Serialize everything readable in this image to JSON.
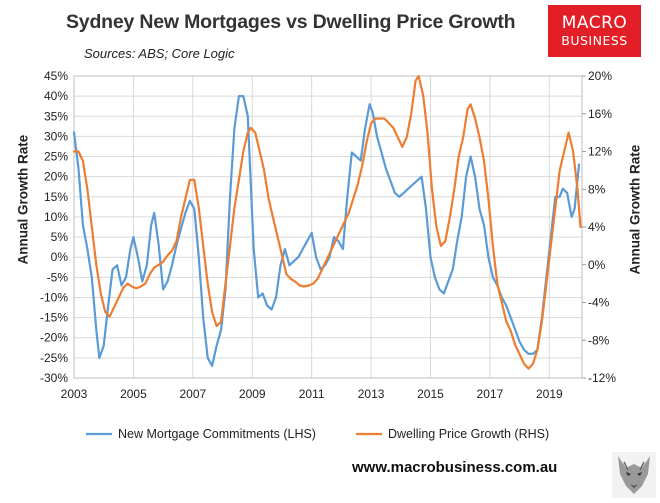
{
  "header": {
    "title": "Sydney New Mortgages vs Dwelling Price Growth",
    "subtitle": "Sources: ABS; Core Logic",
    "logo_line1": "MACRO",
    "logo_line2": "BUSINESS"
  },
  "footer": {
    "website": "www.macrobusiness.com.au",
    "icon": "wolf-logo"
  },
  "colors": {
    "lhs_series": "#5b9bd5",
    "rhs_series": "#ed7d31",
    "brand_red": "#e21f26",
    "grid": "#d9d9d9"
  },
  "chart_data": {
    "type": "line",
    "title": "Sydney New Mortgages vs Dwelling Price Growth",
    "ylabel_left": "Annual Growth Rate",
    "ylabel_right": "Annual Growth Rate",
    "xlim": [
      2003,
      2020.1
    ],
    "ylim_left": [
      -30,
      45
    ],
    "ylim_right": [
      -12,
      20
    ],
    "x_ticks": [
      "2003",
      "2005",
      "2007",
      "2009",
      "2011",
      "2013",
      "2015",
      "2017",
      "2019"
    ],
    "x_tick_values": [
      2003,
      2005,
      2007,
      2009,
      2011,
      2013,
      2015,
      2017,
      2019
    ],
    "y_left_ticks": [
      "45%",
      "40%",
      "35%",
      "30%",
      "25%",
      "20%",
      "15%",
      "10%",
      "5%",
      "0%",
      "-5%",
      "-10%",
      "-15%",
      "-20%",
      "-25%",
      "-30%"
    ],
    "y_left_tick_values": [
      45,
      40,
      35,
      30,
      25,
      20,
      15,
      10,
      5,
      0,
      -5,
      -10,
      -15,
      -20,
      -25,
      -30
    ],
    "y_right_ticks": [
      "20%",
      "16%",
      "12%",
      "8%",
      "4%",
      "0%",
      "-4%",
      "-8%",
      "-12%"
    ],
    "y_right_tick_values": [
      20,
      16,
      12,
      8,
      4,
      0,
      -4,
      -8,
      -12
    ],
    "grid": true,
    "legend_position": "bottom",
    "series": [
      {
        "name": "New Mortgage Commitments (LHS)",
        "axis": "left",
        "color": "#5b9bd5",
        "points": [
          [
            2003.0,
            31
          ],
          [
            2003.15,
            22
          ],
          [
            2003.3,
            8
          ],
          [
            2003.45,
            2
          ],
          [
            2003.6,
            -5
          ],
          [
            2003.75,
            -18
          ],
          [
            2003.85,
            -25
          ],
          [
            2004.0,
            -22
          ],
          [
            2004.15,
            -12
          ],
          [
            2004.3,
            -3
          ],
          [
            2004.45,
            -2
          ],
          [
            2004.6,
            -7
          ],
          [
            2004.75,
            -5
          ],
          [
            2004.9,
            2
          ],
          [
            2005.0,
            5
          ],
          [
            2005.15,
            0
          ],
          [
            2005.3,
            -6
          ],
          [
            2005.45,
            -2
          ],
          [
            2005.6,
            8
          ],
          [
            2005.7,
            11
          ],
          [
            2005.85,
            3
          ],
          [
            2006.0,
            -8
          ],
          [
            2006.15,
            -6
          ],
          [
            2006.3,
            -2
          ],
          [
            2006.45,
            3
          ],
          [
            2006.6,
            7
          ],
          [
            2006.75,
            11
          ],
          [
            2006.9,
            14
          ],
          [
            2007.05,
            12
          ],
          [
            2007.2,
            0
          ],
          [
            2007.35,
            -15
          ],
          [
            2007.5,
            -25
          ],
          [
            2007.65,
            -27
          ],
          [
            2007.8,
            -22
          ],
          [
            2007.95,
            -18
          ],
          [
            2008.1,
            -8
          ],
          [
            2008.25,
            15
          ],
          [
            2008.4,
            32
          ],
          [
            2008.55,
            40
          ],
          [
            2008.7,
            40
          ],
          [
            2008.85,
            35
          ],
          [
            2008.95,
            18
          ],
          [
            2009.05,
            2
          ],
          [
            2009.2,
            -10
          ],
          [
            2009.35,
            -9
          ],
          [
            2009.5,
            -12
          ],
          [
            2009.65,
            -13
          ],
          [
            2009.8,
            -10
          ],
          [
            2009.95,
            -2
          ],
          [
            2010.1,
            2
          ],
          [
            2010.25,
            -2
          ],
          [
            2010.4,
            -1
          ],
          [
            2010.55,
            0
          ],
          [
            2010.7,
            2
          ],
          [
            2010.85,
            4
          ],
          [
            2011.0,
            6
          ],
          [
            2011.15,
            0
          ],
          [
            2011.3,
            -3
          ],
          [
            2011.45,
            -2
          ],
          [
            2011.6,
            0
          ],
          [
            2011.75,
            5
          ],
          [
            2011.9,
            4
          ],
          [
            2012.05,
            2
          ],
          [
            2012.2,
            15
          ],
          [
            2012.35,
            26
          ],
          [
            2012.5,
            25
          ],
          [
            2012.65,
            24
          ],
          [
            2012.8,
            32
          ],
          [
            2012.95,
            38
          ],
          [
            2013.05,
            36
          ],
          [
            2013.2,
            30
          ],
          [
            2013.35,
            26
          ],
          [
            2013.5,
            22
          ],
          [
            2013.65,
            19
          ],
          [
            2013.8,
            16
          ],
          [
            2013.95,
            15
          ],
          [
            2014.1,
            16
          ],
          [
            2014.25,
            17
          ],
          [
            2014.4,
            18
          ],
          [
            2014.55,
            19
          ],
          [
            2014.7,
            20
          ],
          [
            2014.85,
            12
          ],
          [
            2015.0,
            0
          ],
          [
            2015.15,
            -5
          ],
          [
            2015.3,
            -8
          ],
          [
            2015.45,
            -9
          ],
          [
            2015.6,
            -6
          ],
          [
            2015.75,
            -3
          ],
          [
            2015.9,
            4
          ],
          [
            2016.05,
            10
          ],
          [
            2016.2,
            20
          ],
          [
            2016.35,
            25
          ],
          [
            2016.5,
            20
          ],
          [
            2016.65,
            12
          ],
          [
            2016.8,
            8
          ],
          [
            2016.95,
            0
          ],
          [
            2017.1,
            -5
          ],
          [
            2017.25,
            -7
          ],
          [
            2017.4,
            -10
          ],
          [
            2017.55,
            -12
          ],
          [
            2017.7,
            -15
          ],
          [
            2017.85,
            -18
          ],
          [
            2018.0,
            -21
          ],
          [
            2018.15,
            -23
          ],
          [
            2018.3,
            -24
          ],
          [
            2018.45,
            -24
          ],
          [
            2018.6,
            -23
          ],
          [
            2018.75,
            -15
          ],
          [
            2018.9,
            -5
          ],
          [
            2019.05,
            5
          ],
          [
            2019.2,
            15
          ],
          [
            2019.35,
            15
          ],
          [
            2019.45,
            17
          ],
          [
            2019.6,
            16
          ],
          [
            2019.75,
            10
          ],
          [
            2019.85,
            12
          ],
          [
            2020.0,
            23
          ]
        ]
      },
      {
        "name": "Dwelling Price Growth (RHS)",
        "axis": "right",
        "color": "#ed7d31",
        "points": [
          [
            2003.0,
            12
          ],
          [
            2003.15,
            12
          ],
          [
            2003.3,
            11
          ],
          [
            2003.45,
            8
          ],
          [
            2003.6,
            4
          ],
          [
            2003.75,
            0
          ],
          [
            2003.9,
            -3
          ],
          [
            2004.05,
            -5
          ],
          [
            2004.2,
            -5.5
          ],
          [
            2004.35,
            -4.5
          ],
          [
            2004.5,
            -3.5
          ],
          [
            2004.65,
            -2.5
          ],
          [
            2004.8,
            -2
          ],
          [
            2004.95,
            -2.3
          ],
          [
            2005.1,
            -2.5
          ],
          [
            2005.25,
            -2.3
          ],
          [
            2005.4,
            -2
          ],
          [
            2005.55,
            -1
          ],
          [
            2005.7,
            -0.3
          ],
          [
            2005.85,
            0
          ],
          [
            2006.0,
            0.3
          ],
          [
            2006.15,
            1
          ],
          [
            2006.3,
            1.5
          ],
          [
            2006.45,
            2.5
          ],
          [
            2006.6,
            5
          ],
          [
            2006.75,
            7
          ],
          [
            2006.9,
            9
          ],
          [
            2007.05,
            9
          ],
          [
            2007.2,
            6
          ],
          [
            2007.35,
            2
          ],
          [
            2007.5,
            -2
          ],
          [
            2007.65,
            -5
          ],
          [
            2007.8,
            -6.5
          ],
          [
            2007.95,
            -6
          ],
          [
            2008.1,
            -2
          ],
          [
            2008.25,
            2
          ],
          [
            2008.4,
            6
          ],
          [
            2008.55,
            9
          ],
          [
            2008.7,
            12
          ],
          [
            2008.85,
            14
          ],
          [
            2008.95,
            14.5
          ],
          [
            2009.1,
            14
          ],
          [
            2009.25,
            12
          ],
          [
            2009.4,
            10
          ],
          [
            2009.55,
            7
          ],
          [
            2009.7,
            5
          ],
          [
            2009.85,
            3
          ],
          [
            2010.0,
            1
          ],
          [
            2010.15,
            -1
          ],
          [
            2010.3,
            -1.5
          ],
          [
            2010.45,
            -1.8
          ],
          [
            2010.6,
            -2.2
          ],
          [
            2010.75,
            -2.3
          ],
          [
            2010.9,
            -2.2
          ],
          [
            2011.05,
            -2
          ],
          [
            2011.2,
            -1.5
          ],
          [
            2011.35,
            -0.5
          ],
          [
            2011.5,
            0.5
          ],
          [
            2011.65,
            1.5
          ],
          [
            2011.8,
            2.5
          ],
          [
            2011.95,
            3.5
          ],
          [
            2012.1,
            4.5
          ],
          [
            2012.25,
            5.5
          ],
          [
            2012.4,
            7
          ],
          [
            2012.55,
            8.5
          ],
          [
            2012.7,
            10.5
          ],
          [
            2012.85,
            13
          ],
          [
            2013.0,
            15
          ],
          [
            2013.15,
            15.5
          ],
          [
            2013.3,
            15.5
          ],
          [
            2013.45,
            15.5
          ],
          [
            2013.6,
            15
          ],
          [
            2013.75,
            14.5
          ],
          [
            2013.9,
            13.5
          ],
          [
            2014.05,
            12.5
          ],
          [
            2014.2,
            13.5
          ],
          [
            2014.35,
            16
          ],
          [
            2014.5,
            19.5
          ],
          [
            2014.6,
            20
          ],
          [
            2014.75,
            18
          ],
          [
            2014.9,
            14
          ],
          [
            2015.05,
            8
          ],
          [
            2015.2,
            4
          ],
          [
            2015.35,
            2
          ],
          [
            2015.5,
            2.5
          ],
          [
            2015.65,
            5
          ],
          [
            2015.8,
            8
          ],
          [
            2015.95,
            11.5
          ],
          [
            2016.1,
            13.5
          ],
          [
            2016.25,
            16.5
          ],
          [
            2016.35,
            17
          ],
          [
            2016.5,
            15.5
          ],
          [
            2016.65,
            13.5
          ],
          [
            2016.8,
            11
          ],
          [
            2016.95,
            7
          ],
          [
            2017.1,
            2
          ],
          [
            2017.25,
            -2
          ],
          [
            2017.4,
            -4
          ],
          [
            2017.55,
            -6
          ],
          [
            2017.7,
            -7
          ],
          [
            2017.85,
            -8.5
          ],
          [
            2018.0,
            -9.5
          ],
          [
            2018.15,
            -10.5
          ],
          [
            2018.3,
            -11
          ],
          [
            2018.45,
            -10.5
          ],
          [
            2018.6,
            -9
          ],
          [
            2018.75,
            -6
          ],
          [
            2018.9,
            -2
          ],
          [
            2019.05,
            2
          ],
          [
            2019.2,
            6
          ],
          [
            2019.35,
            10
          ],
          [
            2019.5,
            12
          ],
          [
            2019.65,
            14
          ],
          [
            2019.8,
            12
          ],
          [
            2019.95,
            8
          ],
          [
            2020.05,
            4
          ]
        ]
      }
    ]
  }
}
